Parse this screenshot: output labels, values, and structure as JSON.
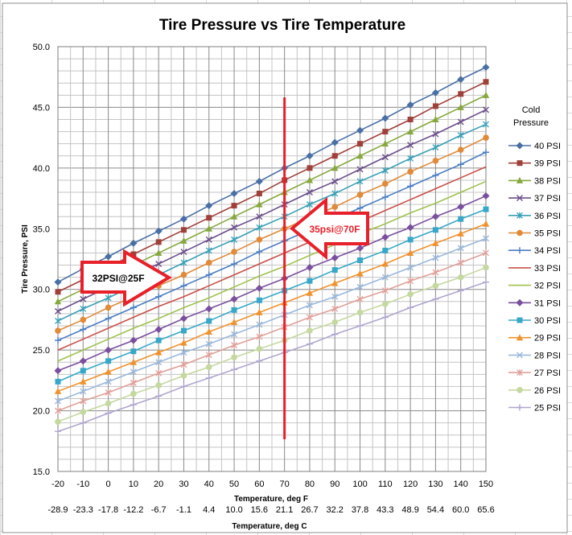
{
  "chart_data": {
    "type": "line",
    "title": "Tire Pressure vs Tire Temperature",
    "xlabel": "Temperature, deg F",
    "ylabel": "Tire Pressure, PSI",
    "secondary_xlabel": "Temperature, deg C",
    "x": [
      -20,
      -10,
      0,
      10,
      20,
      30,
      40,
      50,
      60,
      70,
      80,
      90,
      100,
      110,
      120,
      130,
      140,
      150
    ],
    "x_celsius": [
      "-28.9",
      "-23.3",
      "-17.8",
      "-12.2",
      "-6.7",
      "-1.1",
      "4.4",
      "10.0",
      "15.6",
      "21.1",
      "26.7",
      "32.2",
      "37.8",
      "43.3",
      "48.9",
      "54.4",
      "60.0",
      "65.6"
    ],
    "xlim": [
      -20,
      150
    ],
    "ylim": [
      15,
      50
    ],
    "yticks": [
      "15.0",
      "20.0",
      "25.0",
      "30.0",
      "35.0",
      "40.0",
      "45.0",
      "50.0"
    ],
    "grid": true,
    "legend_title": "Cold Pressure",
    "legend_position": "right",
    "series": [
      {
        "name": "40 PSI",
        "color": "#4a6fa5",
        "marker": "diamond",
        "values": [
          30.6,
          31.7,
          32.7,
          33.8,
          34.8,
          35.8,
          36.9,
          37.9,
          38.9,
          40.0,
          41.0,
          42.1,
          43.1,
          44.1,
          45.2,
          46.2,
          47.3,
          48.3
        ]
      },
      {
        "name": "39 PSI",
        "color": "#a0403a",
        "marker": "square",
        "values": [
          29.8,
          30.8,
          31.8,
          32.9,
          33.9,
          34.9,
          35.9,
          36.9,
          37.9,
          39.0,
          40.0,
          41.0,
          42.0,
          43.0,
          44.0,
          45.1,
          46.1,
          47.1
        ]
      },
      {
        "name": "38 PSI",
        "color": "#86a83c",
        "marker": "triangle",
        "values": [
          29.0,
          30.0,
          31.0,
          32.0,
          33.0,
          34.0,
          35.0,
          36.0,
          37.0,
          38.0,
          39.0,
          40.0,
          41.0,
          42.0,
          43.0,
          44.0,
          45.0,
          46.0
        ]
      },
      {
        "name": "37 PSI",
        "color": "#6b4e8c",
        "marker": "x",
        "values": [
          28.2,
          29.2,
          30.2,
          31.2,
          32.1,
          33.1,
          34.1,
          35.1,
          36.0,
          37.0,
          38.0,
          38.9,
          39.9,
          40.9,
          41.9,
          42.8,
          43.8,
          44.8
        ]
      },
      {
        "name": "36 PSI",
        "color": "#3a9fb6",
        "marker": "asterisk",
        "values": [
          27.4,
          28.4,
          29.3,
          30.3,
          31.2,
          32.2,
          33.2,
          34.1,
          35.1,
          36.0,
          37.0,
          37.9,
          38.9,
          39.8,
          40.8,
          41.7,
          42.7,
          43.6
        ]
      },
      {
        "name": "35 PSI",
        "color": "#e08a3a",
        "marker": "circle",
        "values": [
          26.6,
          27.5,
          28.5,
          29.4,
          30.3,
          31.2,
          32.2,
          33.1,
          34.1,
          35.0,
          35.9,
          36.8,
          37.8,
          38.7,
          39.7,
          40.6,
          41.5,
          42.5
        ]
      },
      {
        "name": "34 PSI",
        "color": "#4a7cc4",
        "marker": "plus",
        "values": [
          25.8,
          26.7,
          27.6,
          28.5,
          29.4,
          30.3,
          31.2,
          32.1,
          33.1,
          34.0,
          34.9,
          35.8,
          36.7,
          37.6,
          38.5,
          39.4,
          40.3,
          41.3
        ]
      },
      {
        "name": "33 PSI",
        "color": "#c9504a",
        "marker": "none",
        "values": [
          25.0,
          25.9,
          26.8,
          27.7,
          28.6,
          29.4,
          30.3,
          31.2,
          32.1,
          33.0,
          33.9,
          34.8,
          35.6,
          36.5,
          37.4,
          38.3,
          39.2,
          40.1
        ]
      },
      {
        "name": "32 PSI",
        "color": "#9fc24e",
        "marker": "none",
        "values": [
          24.1,
          25.0,
          25.9,
          26.8,
          27.6,
          28.5,
          29.3,
          30.2,
          31.1,
          31.9,
          32.8,
          33.7,
          34.6,
          35.4,
          36.3,
          37.1,
          38.0,
          38.9
        ]
      },
      {
        "name": "31 PSI",
        "color": "#7a4f9e",
        "marker": "diamond",
        "values": [
          23.3,
          24.1,
          25.0,
          25.8,
          26.7,
          27.6,
          28.4,
          29.2,
          30.1,
          30.9,
          31.8,
          32.6,
          33.4,
          34.3,
          35.1,
          36.0,
          36.8,
          37.7
        ]
      },
      {
        "name": "30 PSI",
        "color": "#38a8c8",
        "marker": "square",
        "values": [
          22.4,
          23.3,
          24.1,
          24.9,
          25.8,
          26.6,
          27.4,
          28.3,
          29.1,
          29.9,
          30.7,
          31.6,
          32.4,
          33.2,
          34.1,
          34.9,
          35.8,
          36.6
        ]
      },
      {
        "name": "29 PSI",
        "color": "#f0922e",
        "marker": "triangle",
        "values": [
          21.6,
          22.4,
          23.2,
          24.0,
          24.8,
          25.6,
          26.5,
          27.3,
          28.1,
          28.9,
          29.7,
          30.5,
          31.3,
          32.1,
          33.0,
          33.8,
          34.6,
          35.4
        ]
      },
      {
        "name": "28 PSI",
        "color": "#9ab8dc",
        "marker": "x",
        "values": [
          20.8,
          21.6,
          22.4,
          23.2,
          24.0,
          24.8,
          25.5,
          26.3,
          27.1,
          27.9,
          28.7,
          29.4,
          30.2,
          31.0,
          31.8,
          32.6,
          33.4,
          34.2
        ]
      },
      {
        "name": "27 PSI",
        "color": "#e0a09a",
        "marker": "asterisk",
        "values": [
          20.0,
          20.8,
          21.5,
          22.3,
          23.1,
          23.8,
          24.6,
          25.4,
          26.1,
          26.9,
          27.7,
          28.4,
          29.2,
          29.9,
          30.7,
          31.4,
          32.2,
          33.0
        ]
      },
      {
        "name": "26 PSI",
        "color": "#c5d8a0",
        "marker": "circle",
        "values": [
          19.1,
          19.9,
          20.6,
          21.4,
          22.1,
          22.9,
          23.6,
          24.4,
          25.1,
          25.8,
          26.6,
          27.3,
          28.1,
          28.8,
          29.6,
          30.3,
          31.0,
          31.8
        ]
      },
      {
        "name": "25 PSI",
        "color": "#b0a6cc",
        "marker": "plus",
        "values": [
          18.3,
          19.0,
          19.8,
          20.5,
          21.2,
          22.0,
          22.7,
          23.4,
          24.1,
          24.8,
          25.5,
          26.3,
          27.0,
          27.7,
          28.5,
          29.2,
          29.9,
          30.6
        ]
      }
    ],
    "vertical_marker": {
      "x": 70,
      "color": "#e8202a"
    },
    "annotations": [
      {
        "text": "32PSI@25F",
        "direction": "right",
        "text_color": "#000000"
      },
      {
        "text": "35psi@70F",
        "direction": "left",
        "text_color": "#e8202a"
      }
    ]
  }
}
